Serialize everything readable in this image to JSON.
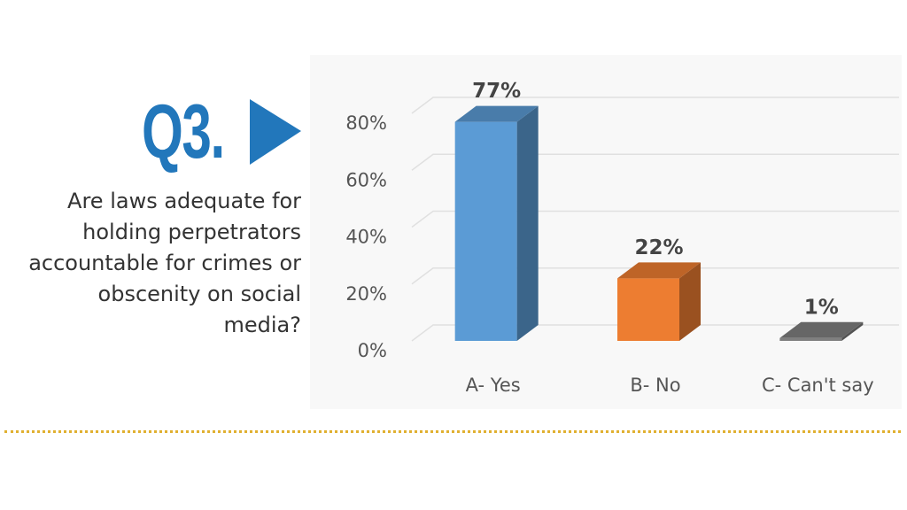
{
  "header": {
    "question_number": "Q3.",
    "question": "Are laws adequate for holding perpetrators accountable for crimes or obscenity on social media?"
  },
  "chart_data": {
    "type": "bar3d",
    "categories": [
      "A- Yes",
      "B- No",
      "C- Can't say"
    ],
    "values": [
      77,
      22,
      1
    ],
    "value_labels": [
      "77%",
      "22%",
      "1%"
    ],
    "colors": [
      "#5b9bd5",
      "#ed7d31",
      "#7f7f7f"
    ],
    "ylim": [
      0,
      80
    ],
    "yticks": [
      {
        "value": 0,
        "label": "0%"
      },
      {
        "value": 20,
        "label": "20%"
      },
      {
        "value": 40,
        "label": "40%"
      },
      {
        "value": 60,
        "label": "60%"
      },
      {
        "value": 80,
        "label": "80%"
      }
    ],
    "grid": true
  }
}
